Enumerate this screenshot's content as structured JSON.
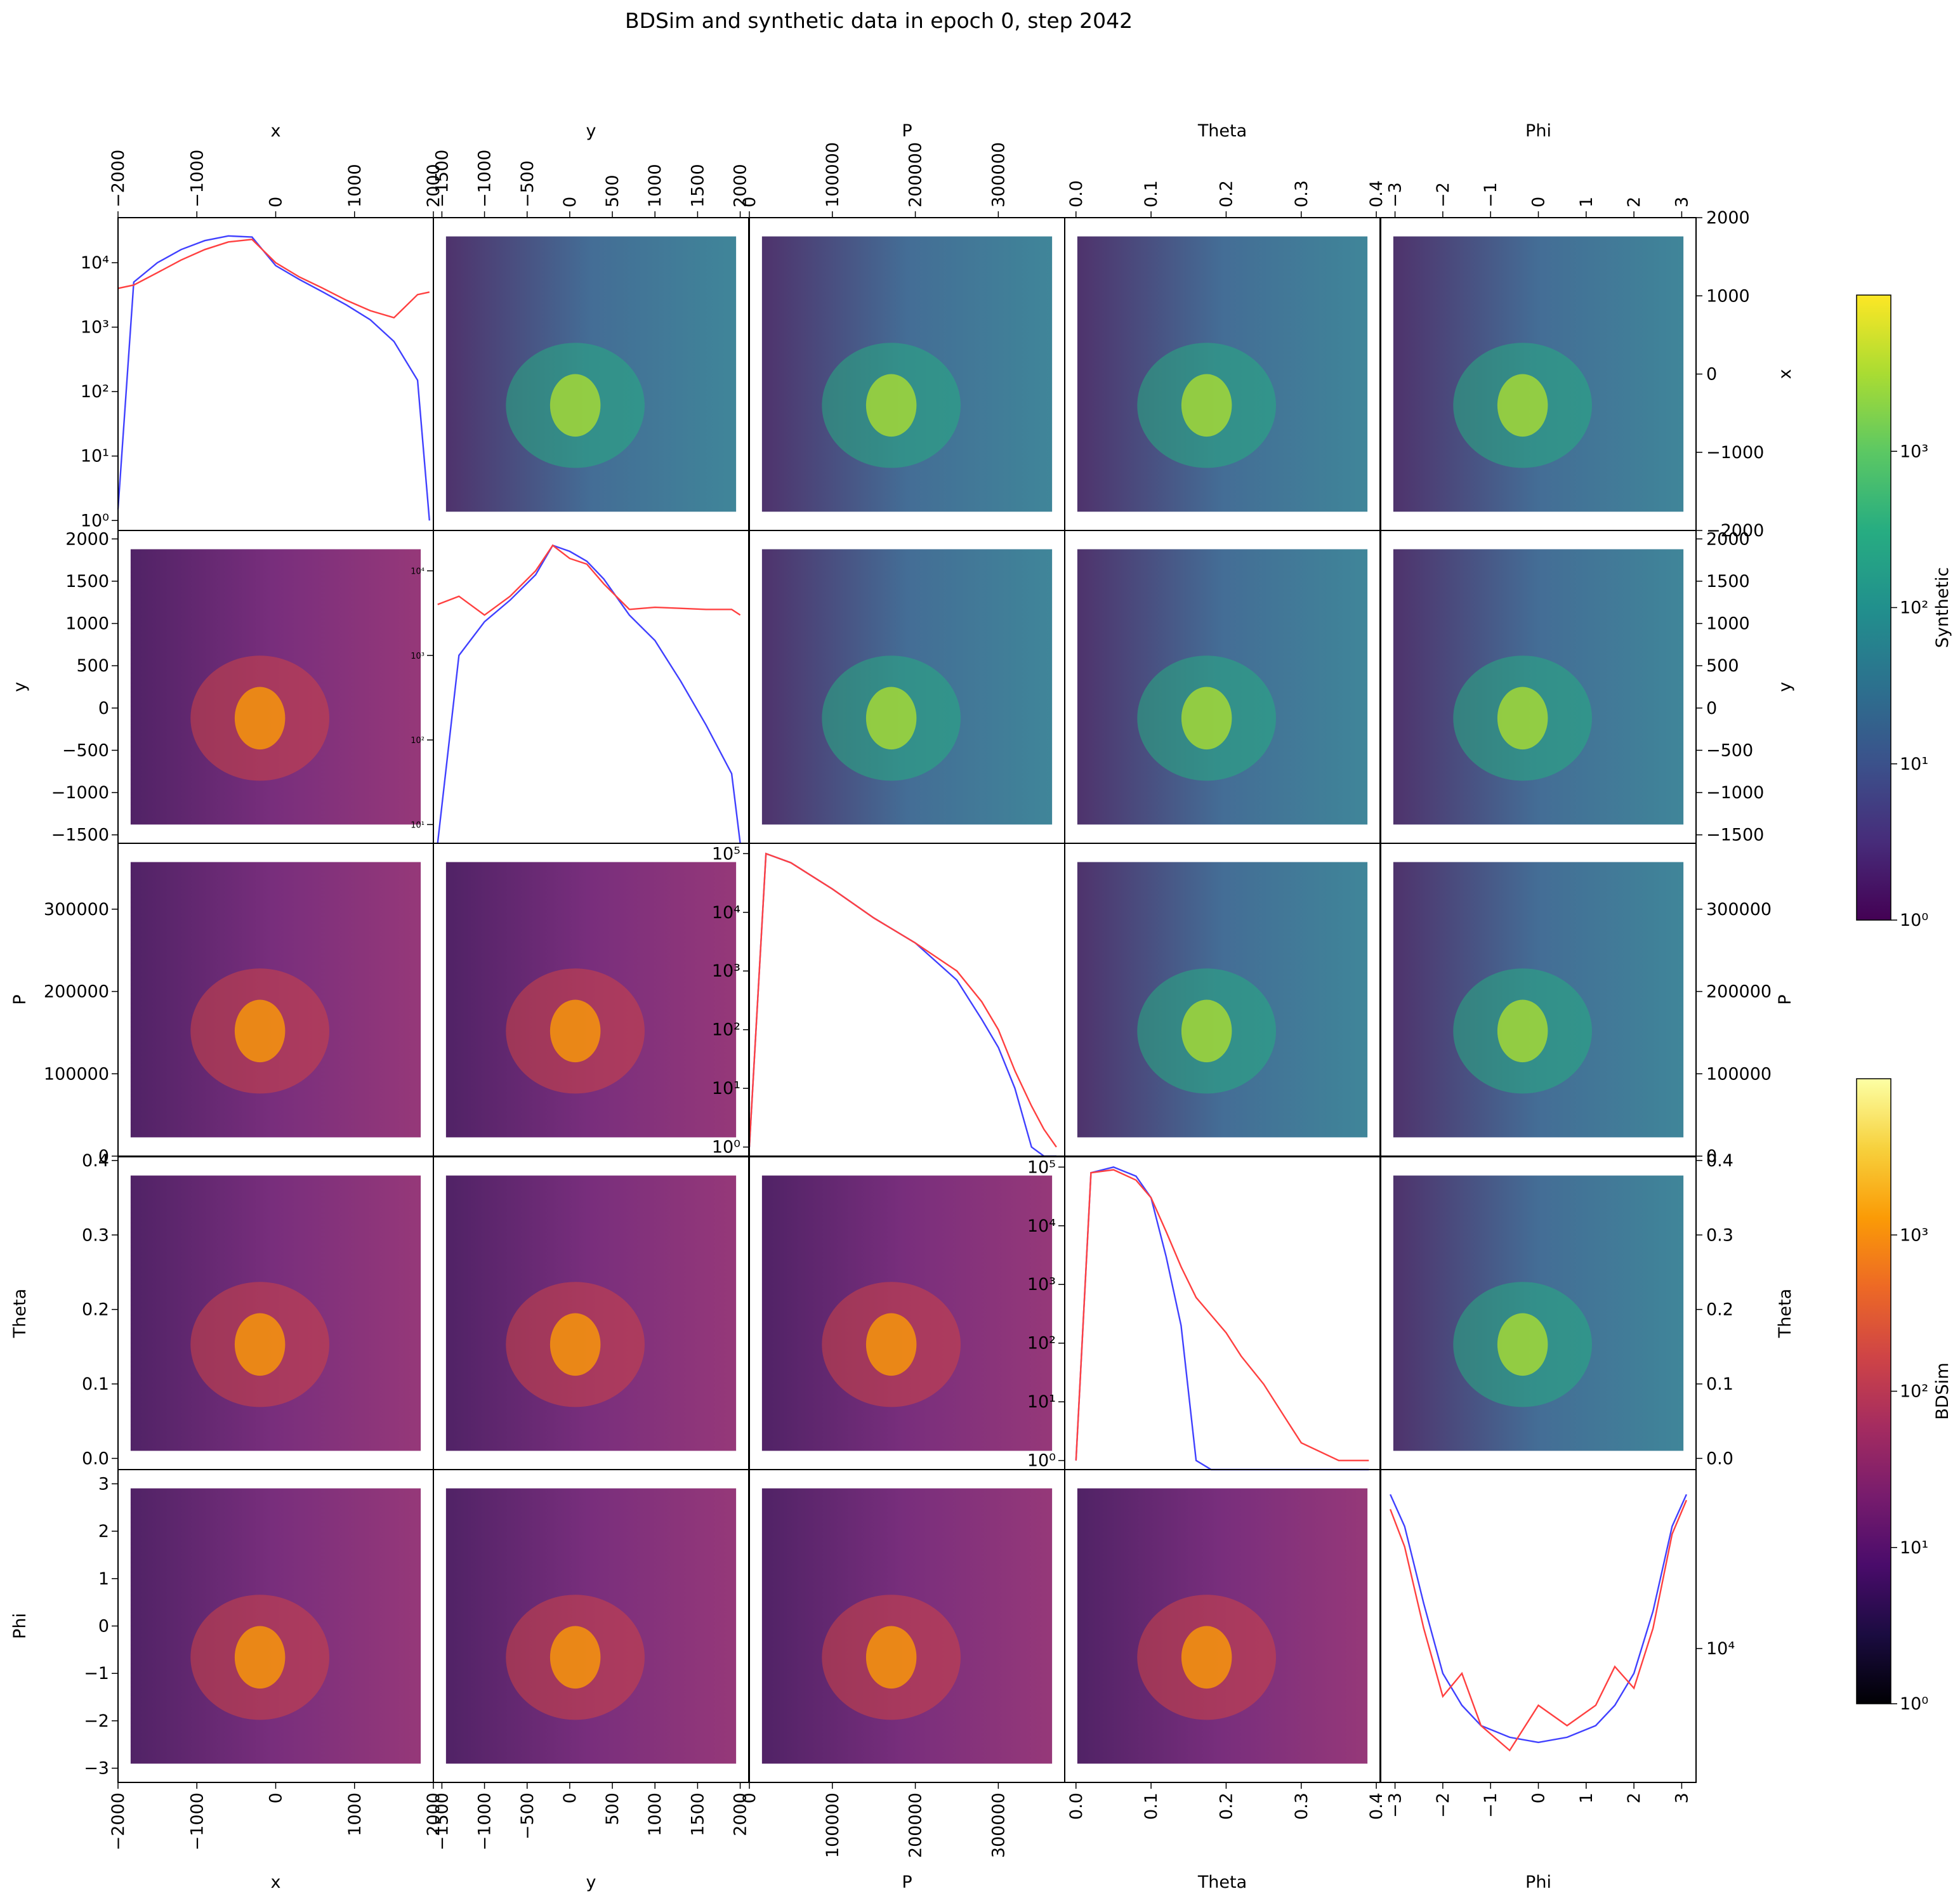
{
  "title": "BDSim and synthetic data in epoch 0, step 2042",
  "variables": [
    "x",
    "y",
    "P",
    "Theta",
    "Phi"
  ],
  "colorbars": [
    {
      "label": "Synthetic",
      "colormap": "viridis",
      "ticks": [
        "10⁰",
        "10¹",
        "10²",
        "10³"
      ]
    },
    {
      "label": "BDSim",
      "colormap": "inferno",
      "ticks": [
        "10⁰",
        "10¹",
        "10²",
        "10³"
      ]
    }
  ],
  "colors": {
    "synthetic_hist": "#4040ff",
    "bdsim_hist": "#ff4040"
  },
  "chart_data": {
    "type": "heatmap",
    "layout": "pair-grid 5x5: diagonal = 1D log histograms (blue = Synthetic, red = BDSim); above diagonal = Synthetic 2D histograms; below diagonal = BDSim 2D histograms; both log color scale",
    "axes": {
      "x": {
        "label": "x",
        "range": [
          -2000,
          2000
        ],
        "ticks": [
          -2000,
          -1000,
          0,
          1000,
          2000
        ]
      },
      "y": {
        "label": "y",
        "range": [
          -1600,
          2100
        ],
        "ticks": [
          -1500,
          -1000,
          -500,
          0,
          500,
          1000,
          1500,
          2000
        ]
      },
      "P": {
        "label": "P",
        "range": [
          0,
          380000
        ],
        "ticks": [
          0,
          100000,
          200000,
          300000
        ]
      },
      "Theta": {
        "label": "Theta",
        "range": [
          -0.015,
          0.405
        ],
        "ticks": [
          0.0,
          0.1,
          0.2,
          0.3,
          0.4
        ]
      },
      "Phi": {
        "label": "Phi",
        "range": [
          -3.3,
          3.3
        ],
        "ticks": [
          -3,
          -2,
          -1,
          0,
          1,
          2,
          3
        ]
      }
    },
    "diagonal_hist": [
      {
        "var": "x",
        "ylog": [
          0.7,
          50000
        ],
        "yticks": [
          "10⁰",
          "10¹",
          "10²",
          "10³",
          "10⁴"
        ],
        "x": [
          -2000,
          -1800,
          -1500,
          -1200,
          -900,
          -600,
          -300,
          0,
          300,
          600,
          900,
          1200,
          1500,
          1800,
          1950
        ],
        "synthetic": [
          1.5,
          5000,
          10000,
          16000,
          22000,
          26000,
          25000,
          9000,
          5500,
          3500,
          2200,
          1300,
          600,
          150,
          1
        ],
        "bdsim": [
          4000,
          4500,
          7000,
          11000,
          16000,
          21000,
          23000,
          10000,
          6000,
          4000,
          2600,
          1800,
          1400,
          3200,
          3500
        ]
      },
      {
        "var": "y",
        "ylog": [
          6,
          30000
        ],
        "yticks": [
          "10¹",
          "10²",
          "10³",
          "10⁴"
        ],
        "x": [
          -1550,
          -1300,
          -1000,
          -700,
          -400,
          -200,
          0,
          200,
          400,
          700,
          1000,
          1300,
          1600,
          1900,
          2000
        ],
        "synthetic": [
          6,
          1000,
          2500,
          4500,
          9000,
          20000,
          17000,
          13000,
          8000,
          3000,
          1500,
          500,
          150,
          40,
          6
        ],
        "bdsim": [
          4000,
          5000,
          3000,
          5000,
          10000,
          20000,
          14000,
          12000,
          7000,
          3500,
          3700,
          3600,
          3500,
          3500,
          3000
        ],
        "note": "small tick labels"
      },
      {
        "var": "P",
        "ylog": [
          0.7,
          150000
        ],
        "yticks": [
          "10⁰",
          "10¹",
          "10²",
          "10³",
          "10⁴",
          "10⁵"
        ],
        "x": [
          0,
          20000,
          50000,
          100000,
          150000,
          200000,
          250000,
          280000,
          300000,
          320000,
          340000,
          355000,
          370000
        ],
        "synthetic": [
          1,
          100000,
          70000,
          25000,
          8000,
          3000,
          700,
          150,
          50,
          10,
          1,
          0.7,
          0.7
        ],
        "bdsim": [
          1,
          100000,
          70000,
          25000,
          8000,
          3000,
          1000,
          300,
          100,
          20,
          5,
          2,
          1
        ]
      },
      {
        "var": "Theta",
        "ylog": [
          0.7,
          150000
        ],
        "yticks": [
          "10⁰",
          "10¹",
          "10²",
          "10³",
          "10⁴",
          "10⁵"
        ],
        "x": [
          0.0,
          0.02,
          0.05,
          0.08,
          0.1,
          0.12,
          0.14,
          0.16,
          0.18,
          0.2,
          0.22,
          0.25,
          0.28,
          0.3,
          0.35,
          0.39
        ],
        "synthetic": [
          1,
          80000,
          100000,
          70000,
          30000,
          3000,
          200,
          1,
          0.7,
          0.7,
          0.7,
          0.7,
          0.7,
          0.7,
          0.7,
          0.7
        ],
        "bdsim": [
          1,
          80000,
          90000,
          60000,
          30000,
          8000,
          2000,
          600,
          300,
          150,
          60,
          20,
          5,
          2,
          1,
          1
        ]
      },
      {
        "var": "Phi",
        "ylog": [
          3000,
          50000
        ],
        "yticks": [
          "10⁴"
        ],
        "x": [
          -3.1,
          -2.8,
          -2.4,
          -2.0,
          -1.6,
          -1.2,
          -0.6,
          0.0,
          0.6,
          1.2,
          1.6,
          2.0,
          2.4,
          2.8,
          3.1
        ],
        "synthetic": [
          40000,
          30000,
          15000,
          8000,
          6000,
          5000,
          4500,
          4300,
          4500,
          5000,
          6000,
          8000,
          14000,
          30000,
          40000
        ],
        "bdsim": [
          35000,
          25000,
          12000,
          6500,
          8000,
          5000,
          4000,
          6000,
          5000,
          6000,
          8500,
          7000,
          12000,
          28000,
          38000
        ]
      }
    ]
  }
}
